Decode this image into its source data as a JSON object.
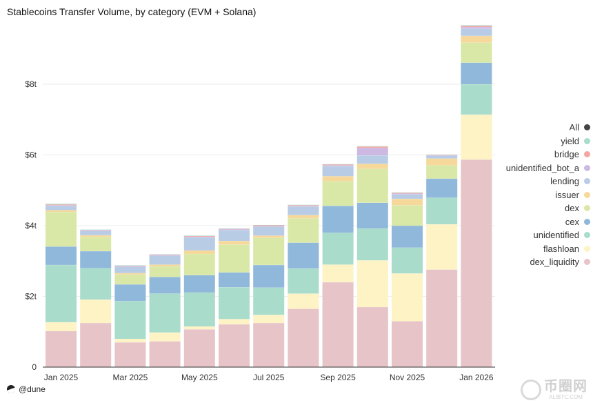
{
  "title": "Stablecoins Transfer Volume, by category (EVM + Solana)",
  "footer_brand": "@dune",
  "watermark": {
    "main": "币圈网",
    "sub": "ALIBTC.COM"
  },
  "chart_data": {
    "type": "bar",
    "stacked": true,
    "title": "Stablecoins Transfer Volume, by category (EVM + Solana)",
    "ylim": [
      0,
      9.6
    ],
    "y_ticks": [
      0,
      2,
      4,
      6,
      8
    ],
    "y_tick_labels": [
      "0",
      "$2t",
      "$4t",
      "$6t",
      "$8t"
    ],
    "x_tick_labels": [
      {
        "label": "Jan 2025",
        "index": 0
      },
      {
        "label": "Mar 2025",
        "index": 2
      },
      {
        "label": "May 2025",
        "index": 4
      },
      {
        "label": "Jul 2025",
        "index": 6
      },
      {
        "label": "Sep 2025",
        "index": 8
      },
      {
        "label": "Nov 2025",
        "index": 10
      },
      {
        "label": "Jan 2026",
        "index": 12
      }
    ],
    "categories": [
      "Jan 2025",
      "Feb 2025",
      "Mar 2025",
      "Apr 2025",
      "May 2025",
      "Jun 2025",
      "Jul 2025",
      "Aug 2025",
      "Sep 2025",
      "Oct 2025",
      "Nov 2025",
      "Dec 2025",
      "Jan 2026"
    ],
    "series": [
      {
        "name": "dex_liquidity",
        "color": "#e7c4c7",
        "values": [
          1.02,
          1.25,
          0.7,
          0.73,
          1.07,
          1.21,
          1.25,
          1.65,
          2.4,
          1.7,
          1.3,
          2.76,
          5.87
        ]
      },
      {
        "name": "flashloan",
        "color": "#fdf3c4",
        "values": [
          0.25,
          0.66,
          0.1,
          0.25,
          0.08,
          0.15,
          0.23,
          0.43,
          0.5,
          1.32,
          1.35,
          1.28,
          1.27
        ]
      },
      {
        "name": "unidentified",
        "color": "#a9dccb",
        "values": [
          1.62,
          0.89,
          1.07,
          1.1,
          0.96,
          0.9,
          0.77,
          0.71,
          0.9,
          0.9,
          0.73,
          0.75,
          0.86
        ]
      },
      {
        "name": "cex",
        "color": "#8fb8db",
        "values": [
          0.52,
          0.48,
          0.47,
          0.47,
          0.49,
          0.42,
          0.64,
          0.73,
          0.76,
          0.73,
          0.62,
          0.54,
          0.61
        ]
      },
      {
        "name": "dex",
        "color": "#d9e8a6",
        "values": [
          0.98,
          0.4,
          0.28,
          0.3,
          0.6,
          0.79,
          0.77,
          0.69,
          0.7,
          0.96,
          0.58,
          0.38,
          0.57
        ]
      },
      {
        "name": "issuer",
        "color": "#f6d89a",
        "values": [
          0.05,
          0.05,
          0.04,
          0.05,
          0.1,
          0.1,
          0.06,
          0.09,
          0.14,
          0.14,
          0.18,
          0.19,
          0.19
        ]
      },
      {
        "name": "lending",
        "color": "#b8cce5",
        "values": [
          0.12,
          0.12,
          0.18,
          0.25,
          0.37,
          0.31,
          0.25,
          0.24,
          0.28,
          0.24,
          0.13,
          0.08,
          0.2
        ]
      },
      {
        "name": "unidentified_bot_a",
        "color": "#cdb8e3",
        "values": [
          0.02,
          0.02,
          0.02,
          0.02,
          0.02,
          0.02,
          0.02,
          0.02,
          0.03,
          0.21,
          0.02,
          0.01,
          0.05
        ]
      },
      {
        "name": "bridge",
        "color": "#f2a7a3",
        "values": [
          0.02,
          0.01,
          0.01,
          0.01,
          0.02,
          0.01,
          0.02,
          0.02,
          0.02,
          0.04,
          0.02,
          0.01,
          0.03
        ]
      },
      {
        "name": "yield",
        "color": "#a9dccb",
        "values": [
          0.02,
          0.01,
          0.01,
          0.01,
          0.01,
          0.01,
          0.01,
          0.01,
          0.01,
          0.01,
          0.01,
          0.01,
          0.02
        ]
      }
    ],
    "legend": {
      "placement": "right",
      "items": [
        {
          "label": "All",
          "color": "#444444"
        },
        {
          "label": "yield",
          "color": "#a9dccb"
        },
        {
          "label": "bridge",
          "color": "#f2a7a3"
        },
        {
          "label": "unidentified_bot_a",
          "color": "#cdb8e3"
        },
        {
          "label": "lending",
          "color": "#b8cce5"
        },
        {
          "label": "issuer",
          "color": "#f6d89a"
        },
        {
          "label": "dex",
          "color": "#d9e8a6"
        },
        {
          "label": "cex",
          "color": "#8fb8db"
        },
        {
          "label": "unidentified",
          "color": "#a9dccb"
        },
        {
          "label": "flashloan",
          "color": "#fdf3c4"
        },
        {
          "label": "dex_liquidity",
          "color": "#e7c4c7"
        }
      ]
    },
    "grid": true
  }
}
